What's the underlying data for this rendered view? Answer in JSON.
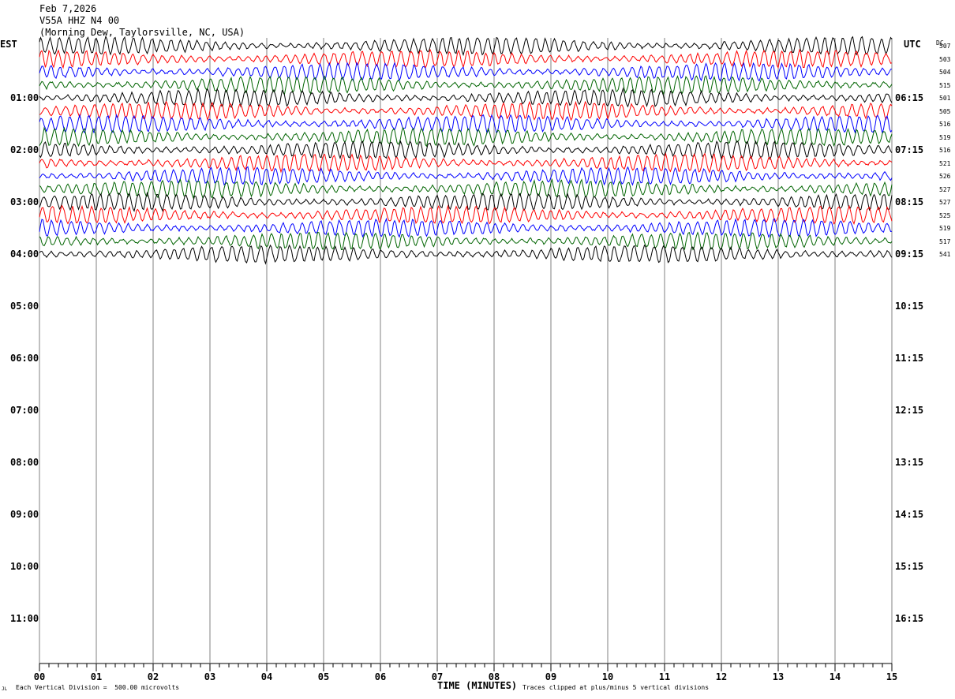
{
  "header": {
    "date": "Feb 7,2026",
    "station": "V55A HHZ N4 00",
    "location": "(Morning Dew, Taylorsville, NC, USA)"
  },
  "left_zone": "EST",
  "right_zone": "UTC",
  "dc_label": "DC",
  "footer": {
    "scale_note": "Each Vertical Division =  500.00 microvolts",
    "clip_note": "Traces clipped at plus/minus 5 vertical divisions",
    "corner_mark": "JL"
  },
  "colors": {
    "cycle": [
      "#000000",
      "#ff0000",
      "#0000ff",
      "#006400"
    ],
    "grid": "#808080"
  },
  "chart_data": {
    "type": "line",
    "title": "V55A HHZ N4 00",
    "xlabel": "TIME (MINUTES)",
    "ylabel": "",
    "xlim": [
      0,
      15
    ],
    "x_ticks": [
      "00",
      "01",
      "02",
      "03",
      "04",
      "05",
      "06",
      "07",
      "08",
      "09",
      "10",
      "11",
      "12",
      "13",
      "14",
      "15"
    ],
    "est_hour_labels": [
      "01:00",
      "02:00",
      "03:00",
      "04:00",
      "05:00",
      "06:00",
      "07:00",
      "08:00",
      "09:00",
      "10:00",
      "11:00"
    ],
    "utc_hour_labels": [
      "06:15",
      "07:15",
      "08:15",
      "09:15",
      "10:15",
      "11:15",
      "12:15",
      "13:15",
      "14:15",
      "15:15",
      "16:15"
    ],
    "rows_total": 48,
    "rows_recorded": 17,
    "row_minutes": 15,
    "dc_offsets": [
      "507",
      "503",
      "504",
      "515",
      "501",
      "505",
      "516",
      "519",
      "516",
      "521",
      "526",
      "527",
      "527",
      "525",
      "519",
      "517",
      "541"
    ],
    "clip_divisions": 5,
    "microvolts_per_division": 500.0
  }
}
